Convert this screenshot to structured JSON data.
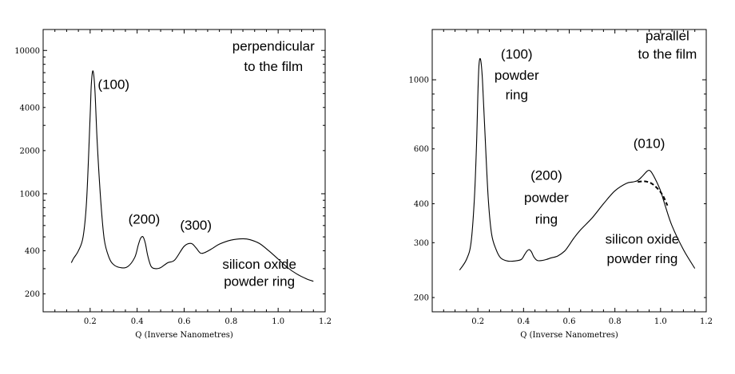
{
  "chart_data": [
    {
      "type": "line",
      "title": "",
      "xlabel": "Q (Inverse Nanometres)",
      "ylabel": "",
      "xlim": [
        0.0,
        1.2
      ],
      "ylim": [
        150,
        14000
      ],
      "y_scale": "log",
      "grid": false,
      "xticks": [
        0.2,
        0.4,
        0.6,
        0.8,
        1.0,
        1.2
      ],
      "xtick_labels": [
        "0.2",
        "0.4",
        "0.6",
        "0.8",
        "1.0",
        "1.2"
      ],
      "yticks": [
        200,
        400,
        1000,
        2000,
        4000,
        10000
      ],
      "ytick_labels": [
        "200",
        "400",
        "1000",
        "2000",
        "4000",
        "10000"
      ],
      "series": [
        {
          "x": [
            0.12,
            0.13,
            0.15,
            0.17,
            0.185,
            0.2,
            0.205,
            0.212,
            0.22,
            0.23,
            0.245,
            0.26,
            0.28,
            0.3,
            0.33,
            0.36,
            0.39,
            0.405,
            0.415,
            0.425,
            0.435,
            0.445,
            0.46,
            0.48,
            0.5,
            0.53,
            0.56,
            0.6,
            0.63,
            0.65,
            0.67,
            0.69,
            0.72,
            0.75,
            0.8,
            0.85,
            0.88,
            0.92,
            0.96,
            1.0,
            1.04,
            1.08,
            1.12,
            1.15
          ],
          "values": [
            330,
            355,
            400,
            500,
            900,
            3500,
            5800,
            7200,
            5400,
            2300,
            900,
            480,
            360,
            320,
            305,
            310,
            360,
            440,
            490,
            500,
            450,
            370,
            310,
            300,
            305,
            330,
            345,
            430,
            450,
            420,
            385,
            390,
            415,
            445,
            475,
            485,
            478,
            450,
            400,
            350,
            305,
            275,
            255,
            245
          ]
        }
      ],
      "annotations": [
        {
          "text": "(100)",
          "x": 0.3,
          "y": 5400
        },
        {
          "text": "(200)",
          "x": 0.43,
          "y": 620
        },
        {
          "text": "(300)",
          "x": 0.65,
          "y": 560
        },
        {
          "text": "silicon oxide",
          "x": 0.92,
          "y": 300
        },
        {
          "text": "powder ring",
          "x": 0.92,
          "y": 228
        },
        {
          "text": "perpendicular",
          "x": 0.98,
          "y": 10000
        },
        {
          "text": "to the film",
          "x": 0.98,
          "y": 7200
        }
      ]
    },
    {
      "type": "line",
      "title": "",
      "xlabel": "Q (Inverse Nanometres)",
      "ylabel": "",
      "xlim": [
        0.0,
        1.2
      ],
      "ylim": [
        180,
        1450
      ],
      "y_scale": "log",
      "grid": false,
      "xticks": [
        0.2,
        0.4,
        0.6,
        0.8,
        1.0,
        1.2
      ],
      "xtick_labels": [
        "0.2",
        "0.4",
        "0.6",
        "0.8",
        "1.0",
        "1.2"
      ],
      "yticks": [
        200,
        300,
        400,
        600,
        1000
      ],
      "ytick_labels": [
        "200",
        "300",
        "400",
        "600",
        "1000"
      ],
      "series": [
        {
          "x": [
            0.12,
            0.15,
            0.17,
            0.185,
            0.195,
            0.2,
            0.205,
            0.212,
            0.22,
            0.23,
            0.245,
            0.26,
            0.28,
            0.3,
            0.33,
            0.36,
            0.39,
            0.405,
            0.415,
            0.425,
            0.435,
            0.445,
            0.46,
            0.48,
            0.5,
            0.52,
            0.55,
            0.58,
            0.6,
            0.62,
            0.65,
            0.7,
            0.75,
            0.8,
            0.85,
            0.88,
            0.9,
            0.92,
            0.94,
            0.95,
            0.96,
            0.98,
            1.0,
            1.02,
            1.05,
            1.1,
            1.15
          ],
          "values": [
            245,
            265,
            300,
            420,
            650,
            900,
            1120,
            1160,
            1000,
            700,
            420,
            320,
            285,
            268,
            262,
            262,
            265,
            275,
            282,
            285,
            280,
            270,
            263,
            263,
            265,
            268,
            272,
            282,
            295,
            310,
            330,
            360,
            400,
            440,
            465,
            470,
            475,
            490,
            508,
            512,
            505,
            475,
            440,
            395,
            340,
            285,
            248
          ]
        },
        {
          "x": [
            0.9,
            0.93,
            0.96,
            0.99,
            1.01,
            1.03
          ],
          "values": [
            470,
            472,
            465,
            445,
            425,
            395
          ],
          "style": "dashed"
        }
      ],
      "annotations": [
        {
          "text": "(100)",
          "x": 0.37,
          "y": 1170
        },
        {
          "text": "powder",
          "x": 0.37,
          "y": 1000
        },
        {
          "text": "ring",
          "x": 0.37,
          "y": 865
        },
        {
          "text": "(200)",
          "x": 0.5,
          "y": 478
        },
        {
          "text": "powder",
          "x": 0.5,
          "y": 405
        },
        {
          "text": "ring",
          "x": 0.5,
          "y": 345
        },
        {
          "text": "(010)",
          "x": 0.95,
          "y": 605
        },
        {
          "text": "silicon oxide",
          "x": 0.92,
          "y": 298
        },
        {
          "text": "powder ring",
          "x": 0.92,
          "y": 258
        },
        {
          "text": "parallel",
          "x": 1.03,
          "y": 1340
        },
        {
          "text": "to the film",
          "x": 1.03,
          "y": 1170
        }
      ]
    }
  ]
}
